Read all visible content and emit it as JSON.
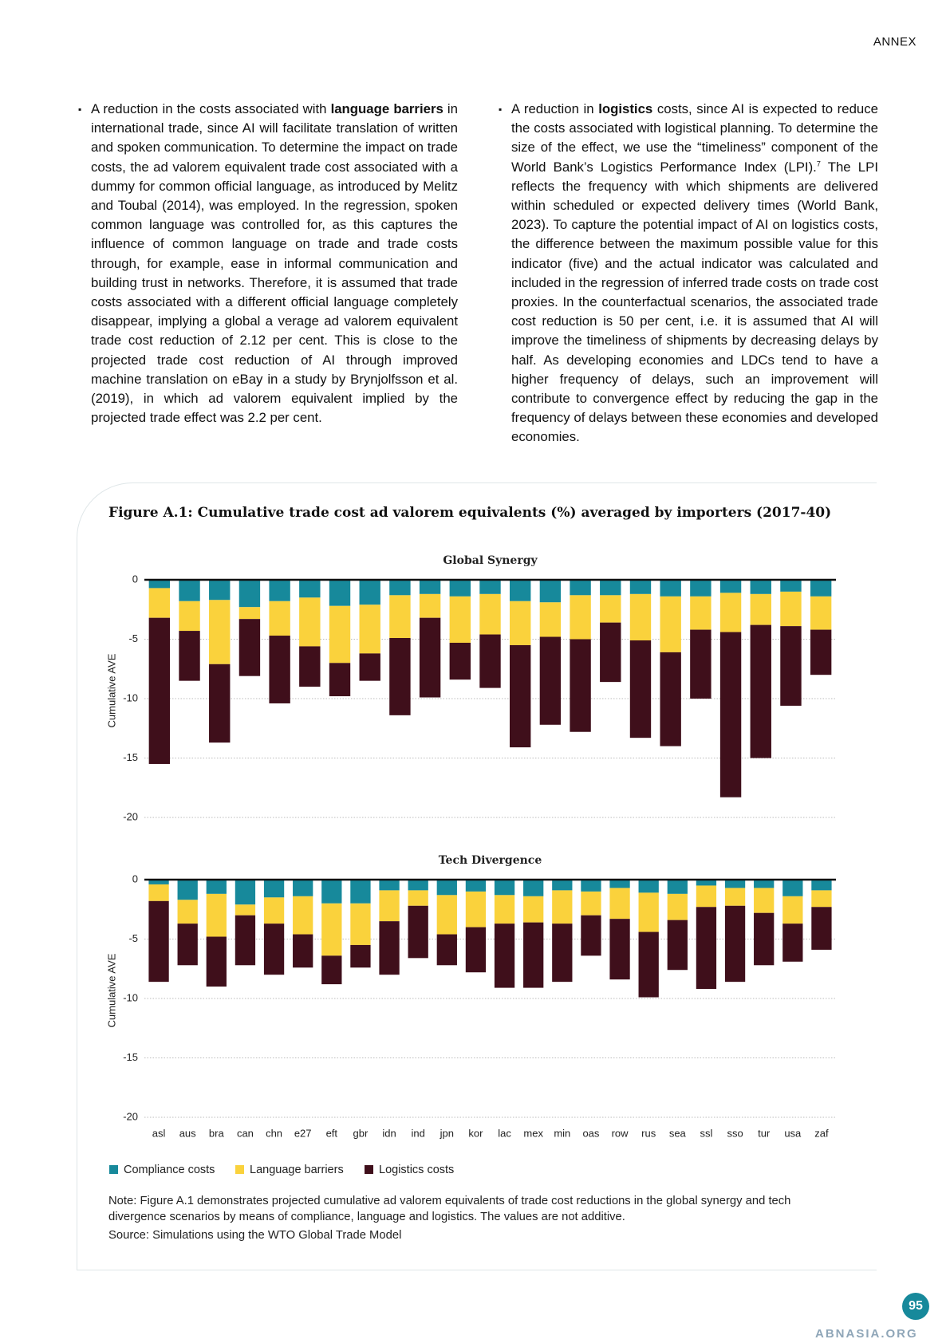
{
  "header": {
    "section": "ANNEX"
  },
  "columns": [
    {
      "parts": [
        "A reduction in the costs associated with ",
        "language barriers",
        " in international trade, since AI will facilitate translation of written and spoken communication. To determine the impact on trade costs, the ad valorem equivalent trade cost associated with a dummy for common official language, as introduced by Melitz and Toubal (2014), was employed. In the regression, spoken common language was controlled for, as this captures the influence of common language on trade and trade costs through, for example, ease in informal communication and building trust in networks. Therefore, it is assumed that trade costs associated with a different official language completely disappear, implying a global a verage ad valorem equivalent trade cost reduction of 2.12 per cent. This is close to the projected trade cost reduction of AI through improved machine translation on eBay in a study by Brynjolfsson et al. (2019), in which ad valorem equivalent implied by the projected trade effect was 2.2 per cent."
      ]
    },
    {
      "parts": [
        "A reduction in ",
        "logistics",
        " costs, since AI is expected to reduce the costs associated with logistical planning. To determine the size of the effect, we use the “timeliness” component of the World Bank’s Logistics Performance Index (LPI).",
        "7",
        " The LPI reflects the frequency with which shipments are delivered within scheduled or expected delivery times (World Bank, 2023). To capture the potential impact of AI on logistics costs, the difference between the maximum possible value for this indicator (five) and the actual indicator was calculated and included in the regression of inferred trade costs on trade cost proxies. In the counterfactual scenarios, the associated trade cost reduction is 50 per cent, i.e. it is assumed that AI will improve the timeliness of shipments by decreasing delays by half. As developing economies and LDCs tend to have a higher frequency of delays, such an improvement will contribute to convergence effect by reducing the gap in the frequency of delays between these economies and developed economies."
      ]
    }
  ],
  "figure": {
    "title": "Figure A.1: Cumulative trade cost ad valorem equivalents (%) averaged by importers (2017-40)",
    "note": "Note: Figure A.1 demonstrates projected cumulative ad valorem equivalents of trade cost reductions in the global synergy and tech divergence scenarios by means of compliance, language and logistics. The values are not additive.",
    "source": "Source: Simulations using the WTO Global Trade Model"
  },
  "chart_data": [
    {
      "type": "bar",
      "stacked": true,
      "title": "Global Synergy",
      "ylabel": "Cumulative AVE",
      "categories": [
        null,
        null,
        null,
        null,
        null,
        null,
        null,
        null,
        null,
        null,
        null,
        null,
        null,
        null,
        null,
        null,
        null,
        null,
        null,
        null,
        null,
        null,
        null
      ],
      "series": [
        {
          "color": "#17899b",
          "values": [
            -0.7,
            -1.8,
            -1.7,
            -2.3,
            -1.8,
            -1.5,
            -2.2,
            -2.1,
            -1.3,
            -1.2,
            -1.4,
            -1.2,
            -1.8,
            -1.9,
            -1.3,
            -1.3,
            -1.2,
            -1.4,
            -1.4,
            -1.1,
            -1.2,
            -1.0,
            -1.4
          ]
        },
        {
          "color": "#fad23c",
          "values": [
            -2.5,
            -2.5,
            -5.4,
            -1.0,
            -2.9,
            -4.1,
            -4.8,
            -4.1,
            -3.6,
            -2.0,
            -3.9,
            -3.4,
            -3.7,
            -2.9,
            -3.7,
            -2.3,
            -3.9,
            -4.7,
            -2.8,
            -3.3,
            -2.6,
            -2.9,
            -2.8
          ]
        },
        {
          "color": "#3f0f1b",
          "values": [
            -12.3,
            -4.2,
            -6.6,
            -4.8,
            -5.7,
            -3.4,
            -2.8,
            -2.3,
            -6.5,
            -6.7,
            -3.1,
            -4.5,
            -8.6,
            -7.4,
            -7.8,
            -5.0,
            -8.2,
            -7.9,
            -5.8,
            -13.9,
            -11.2,
            -6.7,
            -3.8
          ]
        }
      ],
      "ylim": [
        -20,
        0
      ],
      "yticks": [
        0,
        -5,
        -10,
        -15,
        -20
      ],
      "grid": true
    },
    {
      "type": "bar",
      "stacked": true,
      "title": "Tech Divergence",
      "ylabel": "Cumulative AVE",
      "categories": [
        "asl",
        "aus",
        "bra",
        "can",
        "chn",
        "e27",
        "eft",
        "gbr",
        "idn",
        "ind",
        "jpn",
        "kor",
        "lac",
        "mex",
        "min",
        "oas",
        "row",
        "rus",
        "sea",
        "ssl",
        "sso",
        "tur",
        "usa",
        "zaf"
      ],
      "series": [
        {
          "name": "Compliance costs",
          "color": "#17899b",
          "values": [
            -0.4,
            -1.7,
            -1.2,
            -2.1,
            -1.5,
            -1.4,
            -2.0,
            -2.0,
            -0.9,
            -0.9,
            -1.3,
            -1.0,
            -1.3,
            -1.4,
            -0.9,
            -1.0,
            -0.7,
            -1.1,
            -1.2,
            -0.5,
            -0.7,
            -0.7,
            -1.4,
            -0.9
          ]
        },
        {
          "name": "Language barriers",
          "color": "#fad23c",
          "values": [
            -1.4,
            -2.0,
            -3.6,
            -0.9,
            -2.2,
            -3.2,
            -4.4,
            -3.5,
            -2.6,
            -1.3,
            -3.3,
            -3.0,
            -2.4,
            -2.2,
            -2.8,
            -2.0,
            -2.6,
            -3.3,
            -2.2,
            -1.8,
            -1.5,
            -2.1,
            -2.3,
            -1.4
          ]
        },
        {
          "name": "Logistics costs",
          "color": "#3f0f1b",
          "values": [
            -6.8,
            -3.5,
            -4.2,
            -4.2,
            -4.3,
            -2.8,
            -2.4,
            -1.9,
            -4.5,
            -4.4,
            -2.6,
            -3.8,
            -5.4,
            -5.5,
            -4.9,
            -3.4,
            -5.1,
            -5.5,
            -4.2,
            -6.9,
            -6.4,
            -4.4,
            -3.2,
            -3.6
          ]
        }
      ],
      "ylim": [
        -20,
        0
      ],
      "yticks": [
        0,
        -5,
        -10,
        -15,
        -20
      ],
      "grid": true
    }
  ],
  "page_number": "95",
  "watermark": "ABNASIA.ORG"
}
